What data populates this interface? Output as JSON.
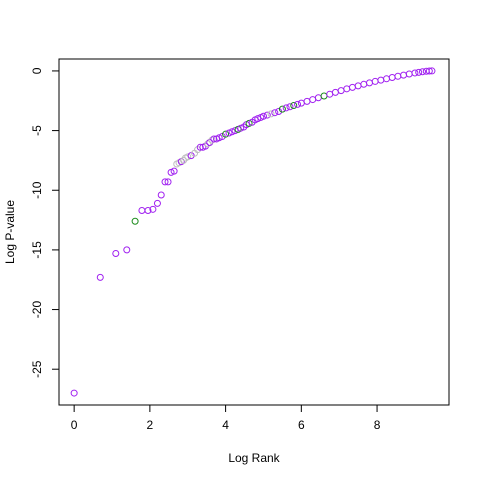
{
  "chart_data": {
    "type": "scatter",
    "title": "",
    "xlabel": "Log Rank",
    "ylabel": "Log P-value",
    "xlim": [
      -0.4,
      9.9
    ],
    "ylim": [
      -28,
      1
    ],
    "x_ticks": [
      0,
      2,
      4,
      6,
      8
    ],
    "y_ticks": [
      0,
      -5,
      -10,
      -15,
      -20,
      -25
    ],
    "grid": false,
    "legend": "none",
    "colors": {
      "purple": "#a020f0",
      "green": "#1a8a1a",
      "gray": "#bebebe"
    },
    "points": [
      {
        "x": 0.0,
        "y": -27.0,
        "c": "purple"
      },
      {
        "x": 0.69,
        "y": -17.3,
        "c": "purple"
      },
      {
        "x": 1.1,
        "y": -15.3,
        "c": "purple"
      },
      {
        "x": 1.39,
        "y": -15.0,
        "c": "purple"
      },
      {
        "x": 1.61,
        "y": -12.6,
        "c": "green"
      },
      {
        "x": 1.79,
        "y": -11.7,
        "c": "purple"
      },
      {
        "x": 1.95,
        "y": -11.7,
        "c": "purple"
      },
      {
        "x": 2.08,
        "y": -11.6,
        "c": "purple"
      },
      {
        "x": 2.2,
        "y": -11.1,
        "c": "purple"
      },
      {
        "x": 2.3,
        "y": -10.4,
        "c": "purple"
      },
      {
        "x": 2.4,
        "y": -9.3,
        "c": "purple"
      },
      {
        "x": 2.48,
        "y": -9.3,
        "c": "purple"
      },
      {
        "x": 2.56,
        "y": -8.5,
        "c": "purple"
      },
      {
        "x": 2.64,
        "y": -8.4,
        "c": "purple"
      },
      {
        "x": 2.71,
        "y": -7.8,
        "c": "gray"
      },
      {
        "x": 2.77,
        "y": -7.7,
        "c": "gray"
      },
      {
        "x": 2.83,
        "y": -7.6,
        "c": "purple"
      },
      {
        "x": 2.89,
        "y": -7.5,
        "c": "gray"
      },
      {
        "x": 2.94,
        "y": -7.3,
        "c": "gray"
      },
      {
        "x": 3.0,
        "y": -7.2,
        "c": "gray"
      },
      {
        "x": 3.09,
        "y": -7.1,
        "c": "purple"
      },
      {
        "x": 3.18,
        "y": -6.9,
        "c": "gray"
      },
      {
        "x": 3.26,
        "y": -6.6,
        "c": "gray"
      },
      {
        "x": 3.33,
        "y": -6.4,
        "c": "purple"
      },
      {
        "x": 3.4,
        "y": -6.4,
        "c": "purple"
      },
      {
        "x": 3.47,
        "y": -6.3,
        "c": "purple"
      },
      {
        "x": 3.53,
        "y": -6.1,
        "c": "gray"
      },
      {
        "x": 3.58,
        "y": -6.0,
        "c": "purple"
      },
      {
        "x": 3.64,
        "y": -5.8,
        "c": "gray"
      },
      {
        "x": 3.69,
        "y": -5.7,
        "c": "purple"
      },
      {
        "x": 3.76,
        "y": -5.7,
        "c": "purple"
      },
      {
        "x": 3.83,
        "y": -5.6,
        "c": "purple"
      },
      {
        "x": 3.91,
        "y": -5.5,
        "c": "purple"
      },
      {
        "x": 4.0,
        "y": -5.3,
        "c": "green"
      },
      {
        "x": 4.09,
        "y": -5.2,
        "c": "purple"
      },
      {
        "x": 4.17,
        "y": -5.1,
        "c": "purple"
      },
      {
        "x": 4.25,
        "y": -5.0,
        "c": "purple"
      },
      {
        "x": 4.33,
        "y": -4.9,
        "c": "green"
      },
      {
        "x": 4.4,
        "y": -4.8,
        "c": "purple"
      },
      {
        "x": 4.48,
        "y": -4.7,
        "c": "purple"
      },
      {
        "x": 4.55,
        "y": -4.5,
        "c": "purple"
      },
      {
        "x": 4.62,
        "y": -4.4,
        "c": "green"
      },
      {
        "x": 4.7,
        "y": -4.3,
        "c": "purple"
      },
      {
        "x": 4.78,
        "y": -4.1,
        "c": "purple"
      },
      {
        "x": 4.85,
        "y": -4.0,
        "c": "purple"
      },
      {
        "x": 4.93,
        "y": -3.9,
        "c": "purple"
      },
      {
        "x": 5.0,
        "y": -3.8,
        "c": "purple"
      },
      {
        "x": 5.1,
        "y": -3.7,
        "c": "purple"
      },
      {
        "x": 5.2,
        "y": -3.6,
        "c": "gray"
      },
      {
        "x": 5.3,
        "y": -3.5,
        "c": "purple"
      },
      {
        "x": 5.4,
        "y": -3.4,
        "c": "purple"
      },
      {
        "x": 5.5,
        "y": -3.2,
        "c": "green"
      },
      {
        "x": 5.6,
        "y": -3.1,
        "c": "purple"
      },
      {
        "x": 5.7,
        "y": -3.0,
        "c": "purple"
      },
      {
        "x": 5.8,
        "y": -2.9,
        "c": "green"
      },
      {
        "x": 5.9,
        "y": -2.8,
        "c": "purple"
      },
      {
        "x": 6.0,
        "y": -2.7,
        "c": "purple"
      },
      {
        "x": 6.15,
        "y": -2.55,
        "c": "purple"
      },
      {
        "x": 6.3,
        "y": -2.4,
        "c": "purple"
      },
      {
        "x": 6.45,
        "y": -2.25,
        "c": "purple"
      },
      {
        "x": 6.6,
        "y": -2.1,
        "c": "green"
      },
      {
        "x": 6.75,
        "y": -1.95,
        "c": "purple"
      },
      {
        "x": 6.9,
        "y": -1.8,
        "c": "purple"
      },
      {
        "x": 7.05,
        "y": -1.65,
        "c": "purple"
      },
      {
        "x": 7.2,
        "y": -1.5,
        "c": "purple"
      },
      {
        "x": 7.35,
        "y": -1.38,
        "c": "purple"
      },
      {
        "x": 7.5,
        "y": -1.25,
        "c": "purple"
      },
      {
        "x": 7.65,
        "y": -1.12,
        "c": "purple"
      },
      {
        "x": 7.8,
        "y": -1.0,
        "c": "purple"
      },
      {
        "x": 7.95,
        "y": -0.88,
        "c": "purple"
      },
      {
        "x": 8.1,
        "y": -0.77,
        "c": "purple"
      },
      {
        "x": 8.25,
        "y": -0.66,
        "c": "purple"
      },
      {
        "x": 8.4,
        "y": -0.55,
        "c": "purple"
      },
      {
        "x": 8.55,
        "y": -0.45,
        "c": "purple"
      },
      {
        "x": 8.7,
        "y": -0.35,
        "c": "purple"
      },
      {
        "x": 8.85,
        "y": -0.26,
        "c": "purple"
      },
      {
        "x": 9.0,
        "y": -0.17,
        "c": "purple"
      },
      {
        "x": 9.1,
        "y": -0.12,
        "c": "purple"
      },
      {
        "x": 9.2,
        "y": -0.07,
        "c": "purple"
      },
      {
        "x": 9.3,
        "y": -0.03,
        "c": "purple"
      },
      {
        "x": 9.38,
        "y": -0.01,
        "c": "purple"
      },
      {
        "x": 9.45,
        "y": 0.0,
        "c": "purple"
      }
    ]
  }
}
